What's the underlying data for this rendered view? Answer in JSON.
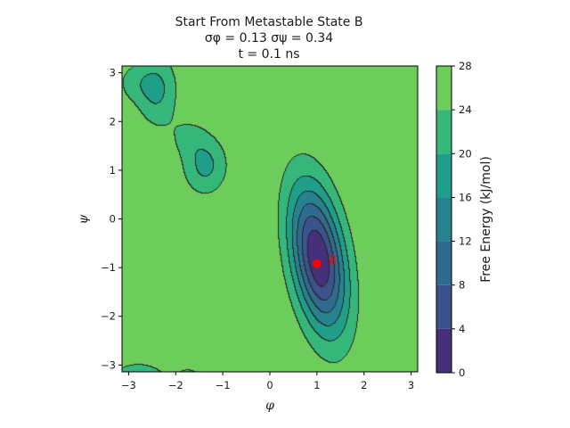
{
  "chart_data": {
    "type": "contourf",
    "title_lines": [
      "Start From Metastable State B",
      "σφ = 0.13  σψ = 0.34",
      "t = 0.1 ns"
    ],
    "xlabel": "φ",
    "ylabel": "ψ",
    "xlim": [
      -3.14,
      3.14
    ],
    "ylim": [
      -3.14,
      3.14
    ],
    "xticks": [
      -3,
      -2,
      -1,
      0,
      1,
      2,
      3
    ],
    "yticks": [
      -3,
      -2,
      -1,
      0,
      1,
      2,
      3
    ],
    "colorbar": {
      "label": "Free Energy (kJ/mol)",
      "levels": [
        0,
        4,
        8,
        12,
        16,
        20,
        24,
        28
      ],
      "colors": [
        "#46307a",
        "#3b528b",
        "#2f6b8e",
        "#26828e",
        "#1f9e89",
        "#35b779",
        "#6ccd5a",
        "#c8d824"
      ]
    },
    "marker": {
      "label": "B",
      "phi": 1.0,
      "psi": -0.92,
      "color": "#ff0000"
    },
    "wells": [
      {
        "phi": 1.02,
        "psi": -0.8,
        "depth": 27.2,
        "s_phi": 0.42,
        "s_psi": 1.05,
        "rho": -0.38
      },
      {
        "phi": -1.38,
        "psi": 1.1,
        "depth": 8.4,
        "s_phi": 0.33,
        "s_psi": 0.42,
        "rho": 0.0
      },
      {
        "phi": -2.4,
        "psi": 2.65,
        "depth": 8.0,
        "s_phi": 0.3,
        "s_psi": 0.52,
        "rho": 0.0
      },
      {
        "phi": -2.9,
        "psi": 2.8,
        "depth": 4.0,
        "s_phi": 0.3,
        "s_psi": 0.3,
        "rho": 0.0
      },
      {
        "phi": -1.75,
        "psi": 1.7,
        "depth": 3.5,
        "s_phi": 0.3,
        "s_psi": 0.3,
        "rho": 0.0
      },
      {
        "phi": -2.8,
        "psi": -3.3,
        "depth": 6.0,
        "s_phi": 0.5,
        "s_psi": 0.3,
        "rho": 0.0
      },
      {
        "phi": -1.7,
        "psi": -3.4,
        "depth": 5.0,
        "s_phi": 0.25,
        "s_psi": 0.3,
        "rho": 0.0
      },
      {
        "phi": 1.0,
        "psi": -3.4,
        "depth": 3.5,
        "s_phi": 0.2,
        "s_psi": 0.15,
        "rho": 0.0
      }
    ]
  }
}
